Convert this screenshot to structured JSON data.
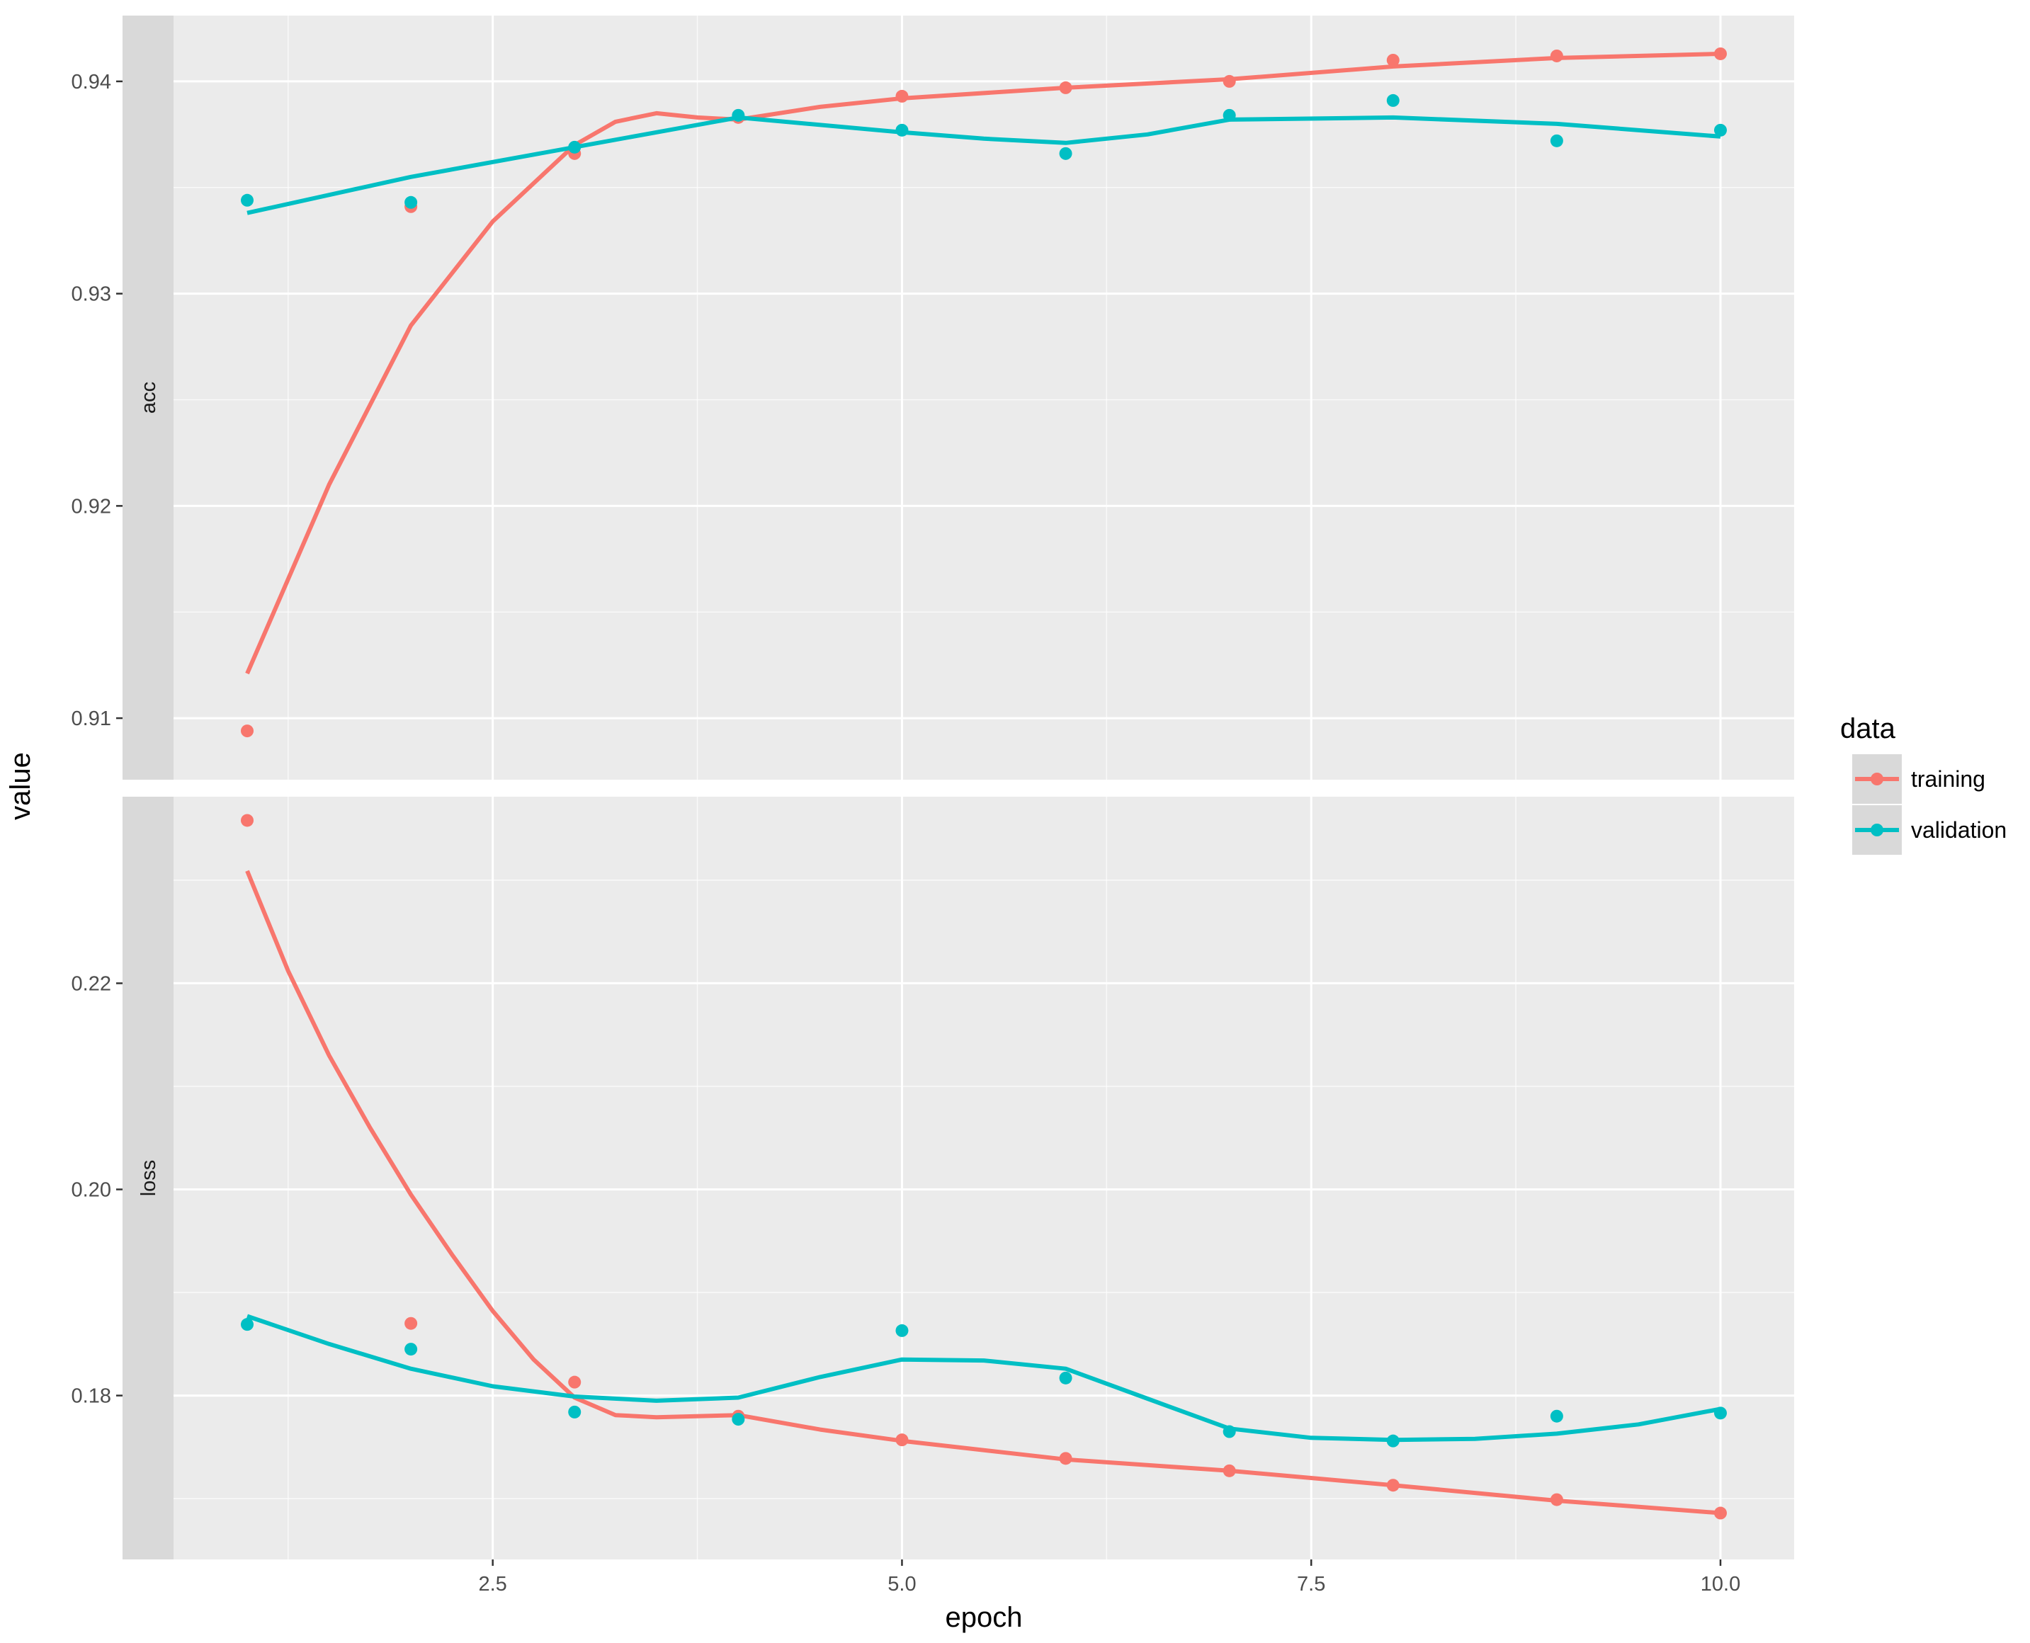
{
  "chart_data": {
    "type": "line",
    "xlabel": "epoch",
    "ylabel": "value",
    "x_ticks": [
      "2.5",
      "5.0",
      "7.5",
      "10.0"
    ],
    "x_tick_values": [
      2.5,
      5.0,
      7.5,
      10.0
    ],
    "xlim": [
      0.55,
      10.45
    ],
    "legend": {
      "title": "data",
      "placement": "right",
      "entries": [
        "training",
        "validation"
      ]
    },
    "colors": {
      "training": "#F8766D",
      "validation": "#00BFC4"
    },
    "panel_background": "#EBEBEB",
    "grid": true,
    "panels": [
      {
        "strip_label": "acc",
        "ylim": [
          0.9071,
          0.9431
        ],
        "y_ticks": [
          "0.91",
          "0.92",
          "0.93",
          "0.94"
        ],
        "y_tick_values": [
          0.91,
          0.92,
          0.93,
          0.94
        ],
        "series": [
          {
            "name": "training",
            "points": {
              "x": [
                1,
                2,
                3,
                4,
                5,
                6,
                7,
                8,
                9,
                10
              ],
              "y": [
                0.9094,
                0.9341,
                0.9366,
                0.9383,
                0.9393,
                0.9397,
                0.94,
                0.941,
                0.9412,
                0.9413
              ]
            },
            "smooth": {
              "x": [
                1.0,
                1.5,
                2.0,
                2.5,
                3.0,
                3.25,
                3.5,
                3.75,
                4.0,
                4.5,
                5.0,
                6.0,
                7.0,
                8.0,
                9.0,
                10.0
              ],
              "y": [
                0.9121,
                0.921,
                0.9285,
                0.9334,
                0.937,
                0.9381,
                0.9385,
                0.9383,
                0.9382,
                0.9388,
                0.9392,
                0.9397,
                0.9401,
                0.9407,
                0.9411,
                0.9413
              ]
            }
          },
          {
            "name": "validation",
            "points": {
              "x": [
                1,
                2,
                3,
                4,
                5,
                6,
                7,
                8,
                9,
                10
              ],
              "y": [
                0.9344,
                0.9343,
                0.9369,
                0.9384,
                0.9377,
                0.9366,
                0.9384,
                0.9391,
                0.9372,
                0.9377
              ]
            },
            "smooth": {
              "x": [
                1.0,
                2.0,
                3.0,
                4.0,
                5.0,
                5.5,
                6.0,
                6.5,
                7.0,
                8.0,
                9.0,
                10.0
              ],
              "y": [
                0.9338,
                0.9355,
                0.9369,
                0.9383,
                0.9376,
                0.9373,
                0.9371,
                0.9375,
                0.9382,
                0.9383,
                0.938,
                0.9374
              ]
            }
          }
        ]
      },
      {
        "strip_label": "loss",
        "ylim": [
          0.1641,
          0.2381
        ],
        "y_ticks": [
          "0.18",
          "0.20",
          "0.22"
        ],
        "y_tick_values": [
          0.18,
          0.2,
          0.22
        ],
        "series": [
          {
            "name": "training",
            "points": {
              "x": [
                1,
                2,
                3,
                4,
                5,
                6,
                7,
                8,
                9,
                10
              ],
              "y": [
                0.2358,
                0.187,
                0.1813,
                0.178,
                0.1757,
                0.1739,
                0.1727,
                0.1713,
                0.1699,
                0.1686
              ]
            },
            "smooth": {
              "x": [
                1.0,
                1.25,
                1.5,
                1.75,
                2.0,
                2.25,
                2.5,
                2.75,
                3.0,
                3.25,
                3.5,
                4.0,
                4.5,
                5.0,
                6.0,
                7.0,
                8.0,
                9.0,
                10.0
              ],
              "y": [
                0.2309,
                0.2212,
                0.213,
                0.206,
                0.1995,
                0.1937,
                0.1882,
                0.1835,
                0.1798,
                0.1781,
                0.1779,
                0.1781,
                0.1767,
                0.1756,
                0.1738,
                0.1727,
                0.1713,
                0.1698,
                0.1686
              ]
            }
          },
          {
            "name": "validation",
            "points": {
              "x": [
                1,
                2,
                3,
                4,
                5,
                6,
                7,
                8,
                9,
                10
              ],
              "y": [
                0.1869,
                0.1845,
                0.1784,
                0.1777,
                0.1863,
                0.1817,
                0.1765,
                0.1756,
                0.178,
                0.1783
              ]
            },
            "smooth": {
              "x": [
                1.0,
                1.5,
                2.0,
                2.5,
                3.0,
                3.5,
                4.0,
                4.5,
                5.0,
                5.5,
                6.0,
                6.5,
                7.0,
                7.5,
                8.0,
                8.5,
                9.0,
                9.5,
                10.0
              ],
              "y": [
                0.1877,
                0.185,
                0.1826,
                0.1809,
                0.1799,
                0.1795,
                0.1798,
                0.1818,
                0.1835,
                0.1834,
                0.1826,
                0.1797,
                0.1768,
                0.1759,
                0.1757,
                0.1758,
                0.1763,
                0.1772,
                0.1787
              ]
            }
          }
        ]
      }
    ]
  }
}
